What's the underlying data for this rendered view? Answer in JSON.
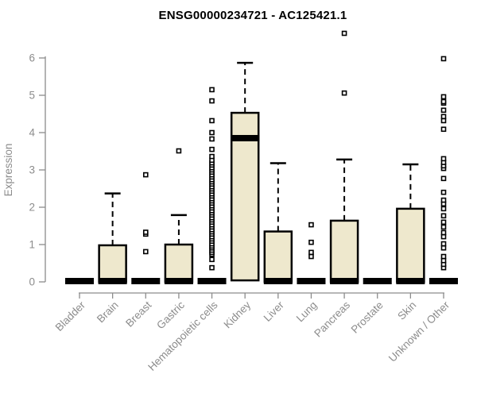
{
  "page": {
    "background": "#FFFFFF"
  },
  "chart_data": {
    "type": "boxplot",
    "title": "ENSG00000234721 - AC125421.1",
    "xlabel": "",
    "ylabel": "Expression",
    "ylim": [
      0,
      6
    ],
    "yticks": [
      0,
      1,
      2,
      3,
      4,
      5,
      6
    ],
    "grid": false,
    "legend": "none",
    "box_fill": "#EEE8CD",
    "box_stroke": "#000000",
    "median_color": "#000000",
    "axis_color": "#8C8C8C",
    "categories": [
      "Bladder",
      "Brain",
      "Breast",
      "Gastric",
      "Hematopoietic cells",
      "Kidney",
      "Liver",
      "Lung",
      "Pancreas",
      "Prostate",
      "Skin",
      "Unknown / Other"
    ],
    "series": [
      {
        "name": "Bladder",
        "q1": 0,
        "median": 0,
        "q3": 0,
        "whisker_low": 0,
        "whisker_high": 0,
        "outliers": []
      },
      {
        "name": "Brain",
        "q1": 0,
        "median": 0,
        "q3": 0.98,
        "whisker_low": 0,
        "whisker_high": 2.37,
        "outliers": []
      },
      {
        "name": "Breast",
        "q1": 0,
        "median": 0,
        "q3": 0,
        "whisker_low": 0,
        "whisker_high": 0,
        "outliers": [
          0.81,
          1.28,
          1.33,
          2.87
        ]
      },
      {
        "name": "Gastric",
        "q1": 0,
        "median": 0,
        "q3": 1.0,
        "whisker_low": 0,
        "whisker_high": 1.79,
        "outliers": [
          3.51
        ]
      },
      {
        "name": "Hematopoietic cells",
        "q1": 0,
        "median": 0,
        "q3": 0,
        "whisker_low": 0,
        "whisker_high": 0,
        "outliers": [
          0.38,
          0.6,
          0.74,
          0.79,
          0.85,
          0.91,
          0.96,
          1.02,
          1.09,
          1.15,
          1.21,
          1.28,
          1.34,
          1.4,
          1.47,
          1.53,
          1.6,
          1.66,
          1.72,
          1.79,
          1.85,
          1.91,
          1.98,
          2.04,
          2.11,
          2.17,
          2.23,
          2.3,
          2.36,
          2.43,
          2.49,
          2.55,
          2.62,
          2.68,
          2.74,
          2.81,
          2.87,
          2.94,
          3.0,
          3.06,
          3.13,
          3.19,
          3.26,
          3.36,
          3.55,
          3.83,
          4.0,
          4.32,
          4.85,
          5.15
        ]
      },
      {
        "name": "Kidney",
        "q1": 0.04,
        "median": 3.83,
        "q3": 4.53,
        "whisker_low": 0,
        "whisker_high": 5.87,
        "outliers": []
      },
      {
        "name": "Liver",
        "q1": 0,
        "median": 0,
        "q3": 1.35,
        "whisker_low": 0,
        "whisker_high": 3.18,
        "outliers": []
      },
      {
        "name": "Lung",
        "q1": 0,
        "median": 0,
        "q3": 0,
        "whisker_low": 0,
        "whisker_high": 0,
        "outliers": [
          0.68,
          0.79,
          1.06,
          1.53
        ]
      },
      {
        "name": "Pancreas",
        "q1": 0,
        "median": 0,
        "q3": 1.64,
        "whisker_low": 0,
        "whisker_high": 3.28,
        "outliers": [
          5.06,
          6.66
        ]
      },
      {
        "name": "Prostate",
        "q1": 0,
        "median": 0,
        "q3": 0,
        "whisker_low": 0,
        "whisker_high": 0,
        "outliers": []
      },
      {
        "name": "Skin",
        "q1": 0,
        "median": 0,
        "q3": 1.96,
        "whisker_low": 0,
        "whisker_high": 3.15,
        "outliers": []
      },
      {
        "name": "Unknown / Other",
        "q1": 0,
        "median": 0,
        "q3": 0,
        "whisker_low": 0,
        "whisker_high": 0,
        "outliers": [
          0.38,
          0.47,
          0.57,
          0.68,
          0.91,
          1.02,
          1.21,
          1.32,
          1.47,
          1.6,
          1.77,
          1.96,
          2.09,
          2.19,
          2.4,
          2.77,
          3.04,
          3.11,
          3.2,
          3.3,
          4.09,
          4.32,
          4.43,
          4.6,
          4.79,
          4.83,
          4.96,
          5.98
        ]
      }
    ]
  }
}
